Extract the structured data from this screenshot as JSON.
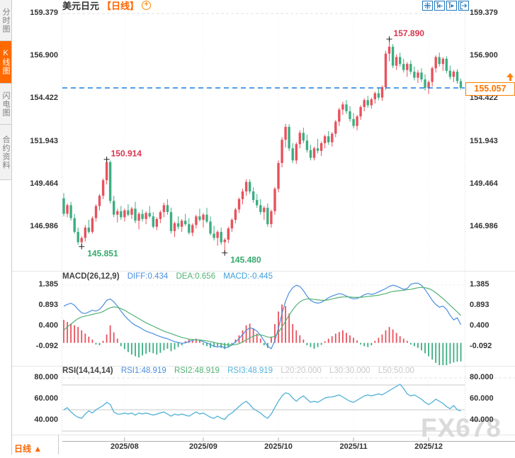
{
  "window": {
    "title_symbol": "美元日元",
    "title_period": "【日线】"
  },
  "sidebar": {
    "items": [
      {
        "label": "分时图",
        "active": false
      },
      {
        "label": "K线图",
        "active": true
      },
      {
        "label": "闪电图",
        "active": false
      },
      {
        "label": "合约资料",
        "active": false
      }
    ]
  },
  "toolbar": {
    "icons": [
      "crosshair-move-icon",
      "fit-scale-left-icon",
      "fit-scale-right-icon",
      "pan-right-icon"
    ]
  },
  "price_tag": {
    "value": "155.057"
  },
  "axes": {
    "main_y_labels": [
      "159.379",
      "156.900",
      "154.422",
      "151.943",
      "149.464",
      "146.986"
    ],
    "macd_y_labels": [
      "1.385",
      "0.893",
      "0.400",
      "-0.092"
    ],
    "rsi_y_labels": [
      "80.000",
      "60.000",
      "40.000"
    ],
    "x_labels": [
      "2025/08",
      "2025/09",
      "2025/10",
      "2025/11",
      "2025/12"
    ]
  },
  "macd_header": {
    "title": "MACD(26,12,9)",
    "diff": "DIFF:0.434",
    "dea": "DEA:0.656",
    "macd": "MACD:-0.445"
  },
  "rsi_header": {
    "title": "RSI(14,14,14)",
    "rsi1": "RSI1:48.919",
    "rsi2": "RSI2:48.919",
    "rsi3": "RSI3:48.919",
    "l20": "L20:20.000",
    "l30": "L30:30.000",
    "l50": "L50:50.00"
  },
  "bottom_bar": {
    "period_label": "日线",
    "arrow": "▲"
  },
  "watermark": "FX678",
  "colors": {
    "up": "#e8515d",
    "down": "#3cae82",
    "accent_orange": "#ff6600",
    "price_line": "#1c7fe0",
    "diff_line": "#4a8ede",
    "dea_line": "#53b274",
    "rsi3_line": "#54b4dc",
    "icon_blue": "#2277bb",
    "annotation_high": "#d8374f",
    "annotation_low": "#35a86d"
  },
  "chart_data": {
    "type": "candlestick",
    "title": "美元日元 【日线】 (USD/JPY daily)",
    "current_price": 155.057,
    "y_ticks_main": [
      159.379,
      156.9,
      154.422,
      151.943,
      149.464,
      146.986
    ],
    "annotations": [
      {
        "text": "157.890",
        "type": "high",
        "bar": 91,
        "value": 157.89
      },
      {
        "text": "150.914",
        "type": "high",
        "bar": 12,
        "value": 150.914
      },
      {
        "text": "145.851",
        "type": "low",
        "bar": 5,
        "value": 145.851
      },
      {
        "text": "145.480",
        "type": "low",
        "bar": 45,
        "value": 145.48
      }
    ],
    "months": [
      {
        "label": "2025/08",
        "bar": 17
      },
      {
        "label": "2025/09",
        "bar": 39
      },
      {
        "label": "2025/10",
        "bar": 60
      },
      {
        "label": "2025/11",
        "bar": 81
      },
      {
        "label": "2025/12",
        "bar": 102
      }
    ],
    "candles": [
      [
        148.65,
        148.95,
        147.6,
        147.75
      ],
      [
        147.75,
        148.35,
        147.55,
        148.25
      ],
      [
        148.25,
        148.45,
        147.35,
        147.5
      ],
      [
        147.5,
        147.75,
        146.6,
        146.7
      ],
      [
        146.7,
        146.95,
        145.95,
        146.1
      ],
      [
        146.1,
        146.45,
        145.851,
        146.35
      ],
      [
        146.35,
        147.1,
        146.15,
        146.95
      ],
      [
        146.95,
        147.4,
        146.6,
        146.7
      ],
      [
        146.7,
        147.6,
        146.6,
        147.5
      ],
      [
        147.5,
        148.3,
        147.3,
        148.2
      ],
      [
        148.2,
        148.9,
        147.95,
        148.8
      ],
      [
        148.8,
        149.8,
        148.6,
        149.7
      ],
      [
        149.7,
        150.914,
        149.45,
        150.75
      ],
      [
        150.75,
        150.85,
        148.35,
        148.5
      ],
      [
        148.5,
        148.8,
        147.55,
        147.7
      ],
      [
        147.7,
        148.05,
        147.25,
        147.9
      ],
      [
        147.9,
        148.2,
        147.4,
        147.55
      ],
      [
        147.55,
        148.05,
        147.3,
        147.95
      ],
      [
        147.95,
        148.3,
        147.6,
        147.7
      ],
      [
        147.7,
        148.15,
        147.45,
        148.05
      ],
      [
        148.05,
        148.45,
        147.2,
        147.35
      ],
      [
        147.35,
        147.85,
        146.85,
        147.75
      ],
      [
        147.75,
        148.0,
        147.3,
        147.45
      ],
      [
        147.45,
        147.9,
        147.15,
        147.8
      ],
      [
        147.8,
        148.2,
        147.5,
        147.6
      ],
      [
        147.6,
        147.85,
        146.9,
        147.0
      ],
      [
        147.0,
        147.55,
        146.8,
        147.45
      ],
      [
        147.45,
        147.95,
        147.2,
        147.85
      ],
      [
        147.85,
        148.4,
        147.55,
        148.25
      ],
      [
        148.25,
        148.6,
        147.7,
        147.85
      ],
      [
        147.85,
        148.1,
        146.6,
        146.75
      ],
      [
        146.75,
        147.3,
        146.4,
        147.2
      ],
      [
        147.2,
        147.6,
        146.85,
        147.0
      ],
      [
        147.0,
        147.45,
        146.7,
        147.35
      ],
      [
        147.35,
        147.75,
        147.05,
        147.15
      ],
      [
        147.15,
        147.5,
        146.55,
        146.65
      ],
      [
        146.65,
        147.2,
        146.45,
        147.1
      ],
      [
        147.1,
        147.7,
        146.9,
        147.6
      ],
      [
        147.6,
        148.05,
        147.3,
        147.4
      ],
      [
        147.4,
        147.8,
        146.95,
        147.7
      ],
      [
        147.7,
        148.1,
        147.2,
        147.3
      ],
      [
        147.3,
        147.6,
        146.5,
        146.6
      ],
      [
        146.6,
        147.05,
        146.2,
        146.35
      ],
      [
        146.35,
        146.8,
        145.9,
        146.7
      ],
      [
        146.7,
        146.95,
        145.95,
        146.1
      ],
      [
        146.1,
        146.35,
        145.48,
        146.25
      ],
      [
        146.25,
        147.0,
        146.05,
        146.9
      ],
      [
        146.9,
        147.5,
        146.7,
        147.4
      ],
      [
        147.4,
        148.1,
        147.2,
        148.0
      ],
      [
        148.0,
        148.7,
        147.8,
        148.6
      ],
      [
        148.6,
        149.2,
        148.3,
        149.05
      ],
      [
        149.05,
        149.75,
        148.8,
        149.6
      ],
      [
        149.6,
        149.75,
        148.9,
        149.05
      ],
      [
        149.05,
        149.3,
        148.4,
        148.55
      ],
      [
        148.55,
        148.9,
        148.1,
        148.25
      ],
      [
        148.25,
        148.6,
        147.7,
        147.85
      ],
      [
        147.85,
        148.2,
        147.4,
        148.1
      ],
      [
        148.1,
        148.35,
        147.0,
        147.15
      ],
      [
        147.15,
        148.0,
        146.95,
        147.9
      ],
      [
        147.9,
        149.3,
        147.7,
        149.2
      ],
      [
        149.2,
        150.85,
        149.0,
        150.7
      ],
      [
        150.7,
        152.2,
        150.45,
        152.05
      ],
      [
        152.05,
        152.97,
        151.6,
        152.8
      ],
      [
        152.8,
        152.95,
        151.4,
        151.55
      ],
      [
        151.55,
        151.85,
        150.7,
        150.85
      ],
      [
        150.85,
        151.9,
        150.65,
        151.8
      ],
      [
        151.8,
        152.6,
        151.55,
        152.45
      ],
      [
        152.45,
        152.75,
        151.85,
        152.0
      ],
      [
        152.0,
        152.35,
        151.3,
        151.45
      ],
      [
        151.45,
        151.75,
        150.85,
        151.0
      ],
      [
        151.0,
        151.65,
        150.85,
        151.55
      ],
      [
        151.55,
        152.1,
        151.25,
        151.4
      ],
      [
        151.4,
        151.95,
        151.1,
        151.85
      ],
      [
        151.85,
        152.35,
        151.55,
        152.25
      ],
      [
        152.25,
        152.55,
        151.75,
        151.9
      ],
      [
        151.9,
        152.5,
        151.65,
        152.4
      ],
      [
        152.4,
        153.2,
        152.2,
        153.1
      ],
      [
        153.1,
        153.9,
        152.85,
        153.8
      ],
      [
        153.8,
        154.25,
        153.5,
        154.1
      ],
      [
        154.1,
        154.35,
        153.55,
        153.7
      ],
      [
        153.7,
        154.0,
        153.1,
        153.25
      ],
      [
        153.25,
        153.6,
        152.7,
        152.85
      ],
      [
        152.85,
        153.5,
        152.6,
        153.4
      ],
      [
        153.4,
        154.05,
        153.2,
        153.95
      ],
      [
        153.95,
        154.45,
        153.7,
        154.35
      ],
      [
        154.35,
        154.6,
        153.9,
        154.05
      ],
      [
        154.05,
        154.5,
        153.85,
        154.4
      ],
      [
        154.4,
        154.85,
        154.15,
        154.75
      ],
      [
        154.75,
        155.05,
        154.35,
        154.5
      ],
      [
        154.5,
        155.2,
        154.3,
        155.1
      ],
      [
        155.1,
        157.2,
        154.95,
        157.05
      ],
      [
        157.05,
        157.89,
        156.6,
        157.45
      ],
      [
        157.45,
        157.6,
        156.2,
        156.35
      ],
      [
        156.35,
        157.0,
        156.1,
        156.85
      ],
      [
        156.85,
        157.1,
        156.3,
        156.45
      ],
      [
        156.45,
        156.75,
        155.95,
        156.1
      ],
      [
        156.1,
        156.55,
        155.7,
        156.45
      ],
      [
        156.45,
        156.65,
        155.85,
        156.0
      ],
      [
        156.0,
        156.3,
        155.5,
        155.65
      ],
      [
        155.65,
        156.1,
        155.35,
        155.95
      ],
      [
        155.95,
        156.2,
        155.4,
        155.55
      ],
      [
        155.55,
        155.85,
        154.9,
        155.05
      ],
      [
        155.05,
        155.5,
        154.7,
        155.4
      ],
      [
        155.4,
        156.3,
        155.15,
        156.2
      ],
      [
        156.2,
        156.95,
        155.95,
        156.85
      ],
      [
        156.85,
        157.1,
        156.3,
        156.45
      ],
      [
        156.45,
        156.85,
        156.05,
        156.75
      ],
      [
        156.75,
        156.9,
        155.9,
        156.05
      ],
      [
        156.05,
        156.35,
        155.55,
        155.7
      ],
      [
        155.7,
        156.1,
        155.4,
        156.0
      ],
      [
        156.0,
        156.15,
        155.3,
        155.45
      ],
      [
        155.45,
        155.6,
        154.95,
        155.057
      ]
    ],
    "macd": {
      "params": "26,12,9",
      "diff_last": 0.434,
      "dea_last": 0.656,
      "macd_last": -0.445,
      "y_ticks": [
        1.385,
        0.893,
        0.4,
        -0.092
      ],
      "hist": [
        0.55,
        0.5,
        0.46,
        0.42,
        0.38,
        0.3,
        0.22,
        0.15,
        0.08,
        -0.04,
        -0.06,
        0.05,
        0.2,
        0.42,
        0.25,
        0.1,
        -0.08,
        -0.15,
        -0.22,
        -0.28,
        -0.32,
        -0.35,
        -0.3,
        -0.26,
        -0.22,
        -0.25,
        -0.28,
        -0.24,
        -0.18,
        -0.14,
        -0.2,
        -0.16,
        -0.1,
        -0.06,
        0.04,
        0.08,
        0.06,
        0.1,
        0.07,
        -0.05,
        -0.08,
        -0.12,
        -0.1,
        -0.08,
        -0.12,
        -0.15,
        -0.1,
        -0.04,
        0.08,
        0.18,
        0.3,
        0.42,
        0.46,
        0.35,
        0.22,
        0.1,
        -0.06,
        -0.12,
        0.15,
        0.45,
        0.75,
        0.92,
        0.88,
        0.7,
        0.45,
        0.3,
        0.18,
        0.08,
        -0.06,
        -0.1,
        -0.14,
        -0.1,
        -0.05,
        0.04,
        0.1,
        0.16,
        0.22,
        0.26,
        0.3,
        0.24,
        0.18,
        0.12,
        0.06,
        -0.04,
        -0.08,
        -0.1,
        -0.06,
        0.05,
        0.12,
        0.2,
        0.3,
        0.38,
        0.32,
        0.24,
        0.16,
        0.1,
        0.05,
        -0.04,
        -0.08,
        -0.12,
        -0.18,
        -0.25,
        -0.32,
        -0.4,
        -0.48,
        -0.55,
        -0.6,
        -0.55,
        -0.5,
        -0.47,
        -0.45,
        -0.445
      ],
      "diff": [
        0.88,
        0.92,
        0.95,
        0.9,
        0.8,
        0.72,
        0.7,
        0.74,
        0.78,
        0.76,
        0.8,
        0.9,
        1.02,
        1.05,
        0.98,
        0.88,
        0.76,
        0.65,
        0.56,
        0.48,
        0.42,
        0.38,
        0.33,
        0.28,
        0.25,
        0.22,
        0.18,
        0.15,
        0.12,
        0.1,
        0.06,
        0.03,
        0.01,
        -0.01,
        0.0,
        0.03,
        0.06,
        0.08,
        0.06,
        0.03,
        0.0,
        -0.04,
        -0.08,
        -0.1,
        -0.08,
        -0.12,
        -0.1,
        -0.05,
        0.02,
        0.1,
        0.2,
        0.3,
        0.36,
        0.34,
        0.28,
        0.18,
        0.05,
        -0.08,
        -0.14,
        0.05,
        0.35,
        0.7,
        1.0,
        1.2,
        1.32,
        1.38,
        1.35,
        1.25,
        1.12,
        1.02,
        0.97,
        0.95,
        0.97,
        1.02,
        1.08,
        1.12,
        1.15,
        1.18,
        1.16,
        1.12,
        1.08,
        1.05,
        1.06,
        1.1,
        1.15,
        1.18,
        1.16,
        1.18,
        1.22,
        1.26,
        1.3,
        1.35,
        1.38,
        1.36,
        1.32,
        1.28,
        1.3,
        1.4,
        1.46,
        1.44,
        1.38,
        1.28,
        1.15,
        1.02,
        0.92,
        0.85,
        0.88,
        0.8,
        0.66,
        0.55,
        0.6,
        0.434
      ],
      "dea": [
        0.3,
        0.38,
        0.45,
        0.52,
        0.58,
        0.62,
        0.64,
        0.66,
        0.68,
        0.7,
        0.72,
        0.75,
        0.8,
        0.84,
        0.86,
        0.85,
        0.82,
        0.78,
        0.73,
        0.68,
        0.63,
        0.58,
        0.53,
        0.48,
        0.44,
        0.4,
        0.36,
        0.32,
        0.28,
        0.25,
        0.22,
        0.19,
        0.16,
        0.13,
        0.11,
        0.09,
        0.08,
        0.07,
        0.07,
        0.06,
        0.05,
        0.03,
        0.01,
        -0.01,
        -0.02,
        -0.04,
        -0.05,
        -0.05,
        -0.04,
        -0.02,
        0.02,
        0.07,
        0.12,
        0.16,
        0.19,
        0.19,
        0.17,
        0.14,
        0.13,
        0.16,
        0.25,
        0.38,
        0.52,
        0.66,
        0.79,
        0.9,
        0.98,
        1.03,
        1.05,
        1.05,
        1.04,
        1.03,
        1.02,
        1.02,
        1.03,
        1.05,
        1.07,
        1.09,
        1.1,
        1.1,
        1.1,
        1.09,
        1.09,
        1.09,
        1.1,
        1.11,
        1.12,
        1.13,
        1.14,
        1.16,
        1.18,
        1.21,
        1.23,
        1.24,
        1.25,
        1.26,
        1.27,
        1.28,
        1.3,
        1.32,
        1.33,
        1.32,
        1.3,
        1.26,
        1.2,
        1.13,
        1.06,
        0.98,
        0.9,
        0.82,
        0.74,
        0.656
      ]
    },
    "rsi": {
      "params": "14,14,14",
      "rsi1_last": 48.919,
      "rsi2_last": 48.919,
      "rsi3_last": 48.919,
      "y_ticks": [
        80,
        60,
        40
      ],
      "levels": [
        50,
        30,
        20
      ],
      "values": [
        50,
        52,
        48,
        45,
        43,
        42,
        46,
        49,
        47,
        50,
        52,
        54,
        57,
        55,
        48,
        46,
        46,
        47,
        46,
        47,
        45,
        47,
        46,
        47,
        46,
        45,
        46,
        47,
        48,
        46,
        44,
        46,
        45,
        46,
        45,
        44,
        46,
        48,
        46,
        47,
        45,
        43,
        42,
        44,
        42,
        41,
        45,
        47,
        50,
        53,
        56,
        58,
        55,
        51,
        49,
        47,
        44,
        42,
        46,
        52,
        58,
        63,
        66,
        65,
        61,
        58,
        61,
        63,
        60,
        57,
        58,
        57,
        59,
        61,
        62,
        62,
        63,
        64,
        62,
        60,
        58,
        57,
        59,
        61,
        63,
        64,
        63,
        64,
        65,
        64,
        66,
        68,
        70,
        72,
        74,
        70,
        65,
        63,
        64,
        62,
        60,
        57,
        55,
        57,
        60,
        58,
        56,
        53,
        51,
        54,
        50,
        48.9
      ]
    }
  }
}
